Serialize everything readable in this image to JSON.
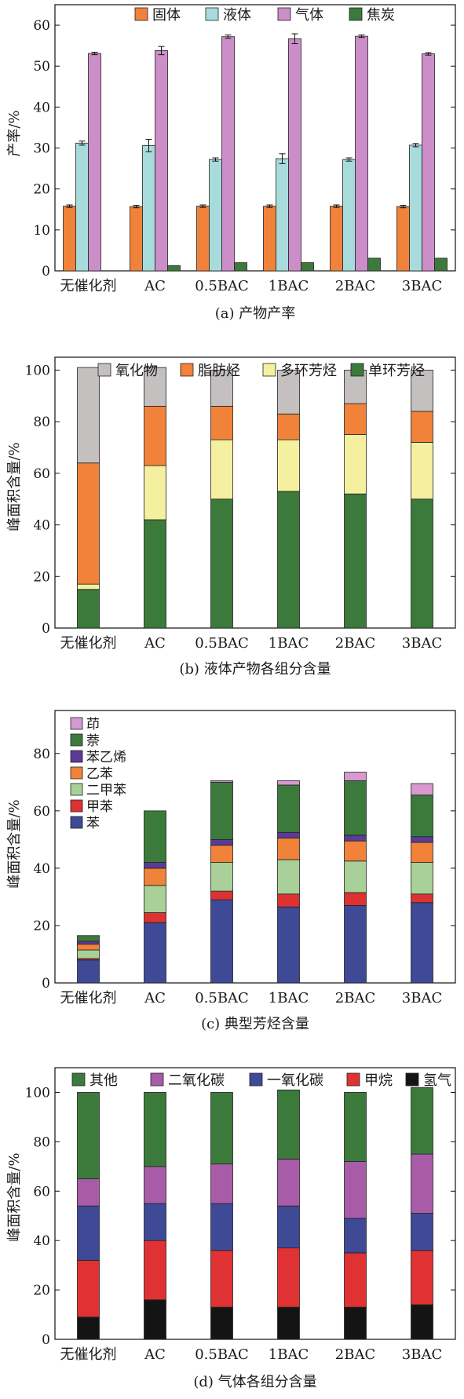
{
  "figure": {
    "categories": [
      "无催化剂",
      "AC",
      "0.5BAC",
      "1BAC",
      "2BAC",
      "3BAC"
    ]
  },
  "chart_data": [
    {
      "type": "bar",
      "panel": "a",
      "caption": "(a) 产物产率",
      "ylabel": "产率/%",
      "ylim": [
        0,
        65
      ],
      "yticks": [
        0,
        10,
        20,
        30,
        40,
        50,
        60
      ],
      "grouped": true,
      "legend_position": "top",
      "categories": [
        "无催化剂",
        "AC",
        "0.5BAC",
        "1BAC",
        "2BAC",
        "3BAC"
      ],
      "series": [
        {
          "name": "固体",
          "color": "#f0823a",
          "values": [
            15.8,
            15.7,
            15.8,
            15.8,
            15.8,
            15.7
          ],
          "errors": [
            0.3,
            0.3,
            0.3,
            0.3,
            0.3,
            0.3
          ]
        },
        {
          "name": "液体",
          "color": "#a8dcdc",
          "values": [
            31.2,
            30.6,
            27.2,
            27.4,
            27.2,
            30.7
          ],
          "errors": [
            0.5,
            1.5,
            0.4,
            1.2,
            0.4,
            0.4
          ]
        },
        {
          "name": "气体",
          "color": "#cc8ec8",
          "values": [
            53.1,
            53.8,
            57.2,
            56.7,
            57.3,
            53.0
          ],
          "errors": [
            0.3,
            1.0,
            0.4,
            1.2,
            0.3,
            0.3
          ]
        },
        {
          "name": "焦炭",
          "color": "#3c7a3c",
          "values": [
            0,
            1.3,
            2.0,
            2.0,
            3.1,
            3.1
          ],
          "errors": [
            0,
            0,
            0,
            0,
            0,
            0
          ]
        }
      ]
    },
    {
      "type": "bar",
      "panel": "b",
      "caption": "(b) 液体产物各组分含量",
      "ylabel": "峰面积含量/%",
      "ylim": [
        0,
        105
      ],
      "yticks": [
        0,
        20,
        40,
        60,
        80,
        100
      ],
      "stacked": true,
      "legend_position": "top",
      "legend_order": [
        3,
        2,
        1,
        0
      ],
      "categories": [
        "无催化剂",
        "AC",
        "0.5BAC",
        "1BAC",
        "2BAC",
        "3BAC"
      ],
      "series": [
        {
          "name": "单环芳烃",
          "color": "#3c7a3c",
          "values": [
            15,
            42,
            50,
            53,
            52,
            50
          ]
        },
        {
          "name": "多环芳烃",
          "color": "#f5f0a0",
          "values": [
            2,
            21,
            23,
            20,
            23,
            22
          ]
        },
        {
          "name": "脂肪烃",
          "color": "#f0823a",
          "values": [
            47,
            23,
            13,
            10,
            12,
            12
          ]
        },
        {
          "name": "氧化物",
          "color": "#c4c0c0",
          "values": [
            37,
            15,
            14,
            17,
            13,
            16
          ]
        }
      ]
    },
    {
      "type": "bar",
      "panel": "c",
      "caption": "(c) 典型芳烃含量",
      "ylabel": "峰面积含量/%",
      "ylim": [
        0,
        95
      ],
      "yticks": [
        0,
        20,
        40,
        60,
        80
      ],
      "stacked": true,
      "legend_position": "top-left",
      "legend_order": [
        6,
        5,
        4,
        3,
        2,
        1,
        0
      ],
      "categories": [
        "无催化剂",
        "AC",
        "0.5BAC",
        "1BAC",
        "2BAC",
        "3BAC"
      ],
      "series": [
        {
          "name": "苯",
          "color": "#3e4a96",
          "values": [
            8,
            21,
            29,
            26.5,
            27,
            28
          ]
        },
        {
          "name": "甲苯",
          "color": "#dc3232",
          "values": [
            0.5,
            3.5,
            3,
            4.5,
            4.5,
            3
          ]
        },
        {
          "name": "二甲苯",
          "color": "#a8d098",
          "values": [
            3,
            9.5,
            10,
            12,
            11,
            11
          ]
        },
        {
          "name": "乙苯",
          "color": "#f0823a",
          "values": [
            2,
            6,
            6,
            7.5,
            7,
            7
          ]
        },
        {
          "name": "苯乙烯",
          "color": "#5a3c96",
          "values": [
            1,
            2,
            2,
            2,
            2,
            2
          ]
        },
        {
          "name": "萘",
          "color": "#3c7a3c",
          "values": [
            2,
            18,
            20,
            16.5,
            19,
            14.5
          ]
        },
        {
          "name": "茚",
          "color": "#d898d0",
          "values": [
            0,
            0,
            0.5,
            1.5,
            3,
            4
          ]
        }
      ]
    },
    {
      "type": "bar",
      "panel": "d",
      "caption": "(d) 气体各组分含量",
      "ylabel": "峰面积含量/%",
      "ylim": [
        0,
        110
      ],
      "yticks": [
        0,
        20,
        40,
        60,
        80,
        100
      ],
      "stacked": true,
      "legend_position": "top",
      "legend_order": [
        4,
        3,
        2,
        1,
        0
      ],
      "categories": [
        "无催化剂",
        "AC",
        "0.5BAC",
        "1BAC",
        "2BAC",
        "3BAC"
      ],
      "series": [
        {
          "name": "氢气",
          "color": "#141414",
          "values": [
            9,
            16,
            13,
            13,
            13,
            14
          ]
        },
        {
          "name": "甲烷",
          "color": "#e03232",
          "values": [
            23,
            24,
            23,
            24,
            22,
            22
          ]
        },
        {
          "name": "一氧化碳",
          "color": "#3e4a96",
          "values": [
            22,
            15,
            19,
            17,
            14,
            15
          ]
        },
        {
          "name": "二氧化碳",
          "color": "#a85ca8",
          "values": [
            11,
            15,
            16,
            19,
            23,
            24
          ]
        },
        {
          "name": "其他",
          "color": "#3c7a3c",
          "values": [
            35,
            30,
            29,
            28,
            28,
            27
          ]
        }
      ]
    }
  ]
}
